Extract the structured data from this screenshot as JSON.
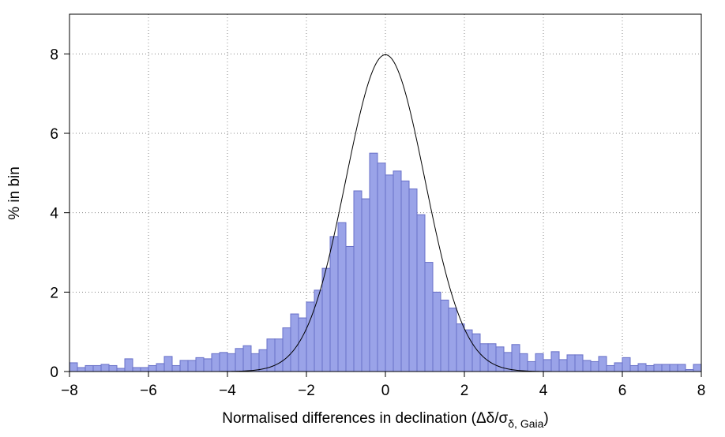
{
  "chart_data": {
    "type": "histogram",
    "xlabel": "Normalised differences in declination  (Δδ/σ",
    "xlabel_subscript": "δ, Gaia",
    "xlabel_end": ")",
    "ylabel": "% in bin",
    "bins": [
      -8,
      -7.8,
      -7.6,
      -7.4,
      -7.2,
      -7,
      -6.8,
      -6.6,
      -6.4,
      -6.2,
      -6,
      -5.8,
      -5.6,
      -5.4,
      -5.2,
      -5,
      -4.8,
      -4.6,
      -4.4,
      -4.2,
      -4,
      -3.8,
      -3.6,
      -3.4,
      -3.2,
      -3,
      -2.8,
      -2.6,
      -2.4,
      -2.2,
      -2,
      -1.8,
      -1.6,
      -1.4,
      -1.2,
      -1,
      -0.8,
      -0.6,
      -0.4,
      -0.2,
      0,
      0.2,
      0.4,
      0.6,
      0.8,
      1,
      1.2,
      1.4,
      1.6,
      1.8,
      2,
      2.2,
      2.4,
      2.6,
      2.8,
      3,
      3.2,
      3.4,
      3.6,
      3.8,
      4,
      4.2,
      4.4,
      4.6,
      4.8,
      5,
      5.2,
      5.4,
      5.6,
      5.8,
      6,
      6.2,
      6.4,
      6.6,
      6.8,
      7,
      7.2,
      7.4,
      7.6,
      7.8,
      8
    ],
    "counts": [
      0.22,
      0.1,
      0.15,
      0.15,
      0.18,
      0.15,
      0.08,
      0.32,
      0.1,
      0.1,
      0.15,
      0.2,
      0.38,
      0.15,
      0.28,
      0.28,
      0.35,
      0.32,
      0.45,
      0.48,
      0.45,
      0.58,
      0.65,
      0.45,
      0.55,
      0.82,
      0.82,
      1.1,
      1.45,
      1.35,
      1.75,
      2.05,
      2.6,
      3.4,
      3.75,
      3.15,
      4.55,
      4.35,
      5.5,
      5.25,
      4.95,
      5.05,
      4.8,
      4.6,
      3.95,
      2.75,
      2.0,
      1.8,
      1.6,
      1.2,
      1.05,
      0.95,
      0.7,
      0.7,
      0.62,
      0.48,
      0.68,
      0.45,
      0.25,
      0.45,
      0.3,
      0.5,
      0.3,
      0.42,
      0.42,
      0.28,
      0.25,
      0.38,
      0.15,
      0.22,
      0.35,
      0.15,
      0.2,
      0.15,
      0.18,
      0.18,
      0.18,
      0.18,
      0.05,
      0.18
    ],
    "color": "#9aa3e8",
    "edge_color": "#6870c8",
    "curve": {
      "mean": 0,
      "sigma": 1,
      "peak": 7.98,
      "color": "#000000"
    },
    "xlim": [
      -8,
      8
    ],
    "ylim": [
      0,
      9
    ],
    "xticks": [
      {
        "value": -8,
        "label": "−8"
      },
      {
        "value": -6,
        "label": "−6"
      },
      {
        "value": -4,
        "label": "−4"
      },
      {
        "value": -2,
        "label": "−2"
      },
      0,
      2,
      4,
      6,
      8
    ],
    "yticks": [
      0,
      2,
      4,
      6,
      8
    ],
    "grid": true
  }
}
